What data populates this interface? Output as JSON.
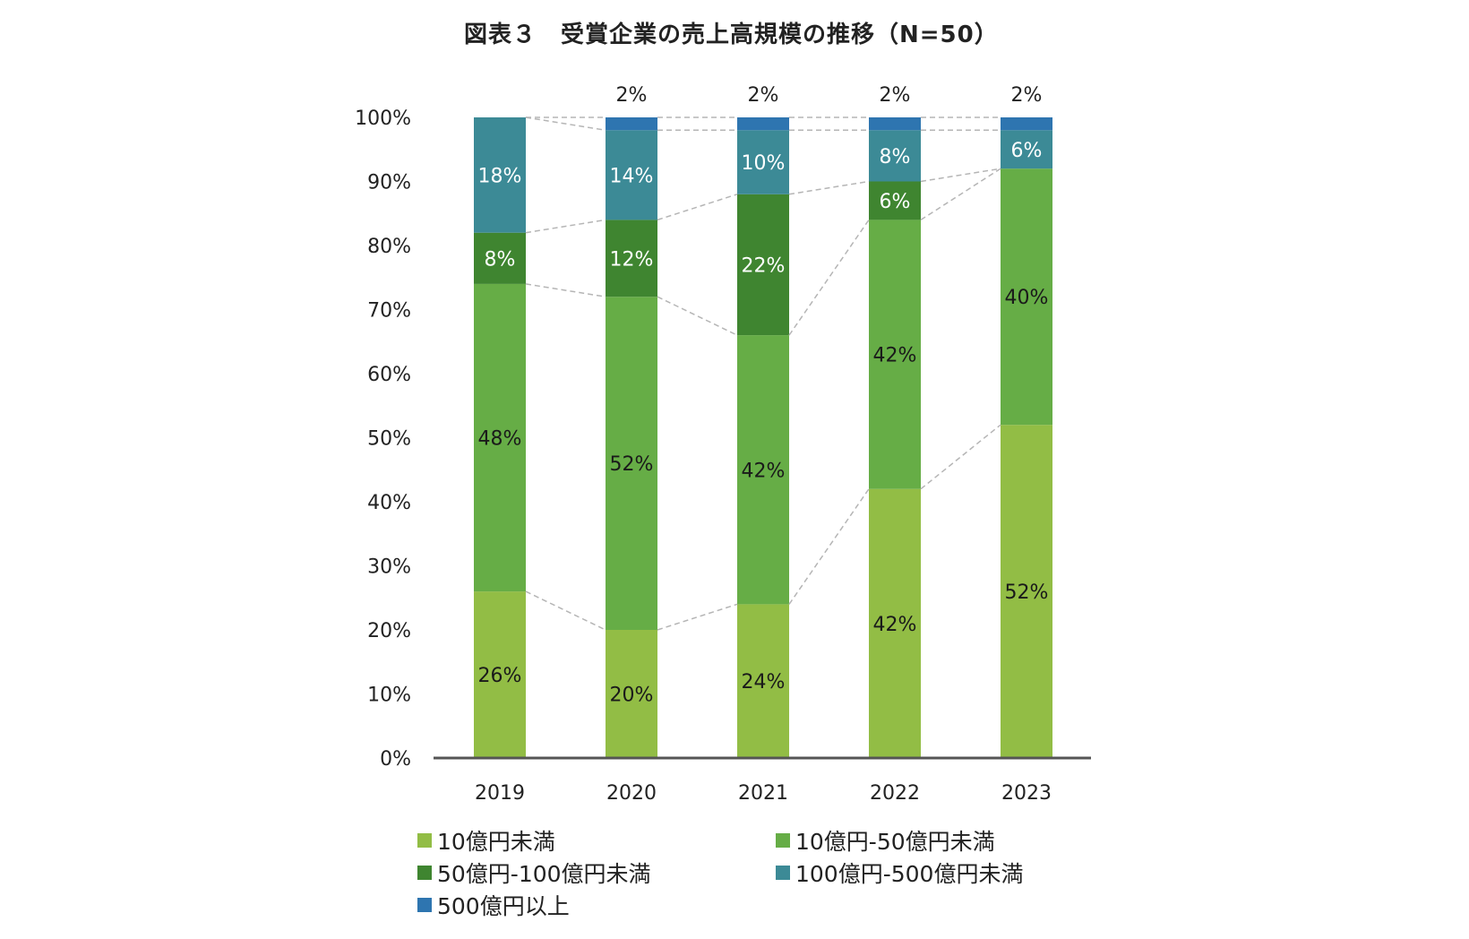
{
  "title": "図表３　受賞企業の売上高規模の推移（N=50）",
  "chart_data": {
    "type": "bar",
    "stacked": true,
    "title": "図表３　受賞企業の売上高規模の推移（N=50）",
    "categories": [
      "2019",
      "2020",
      "2021",
      "2022",
      "2023"
    ],
    "ylim": [
      0,
      100
    ],
    "y_ticks": [
      "0%",
      "10%",
      "20%",
      "30%",
      "40%",
      "50%",
      "60%",
      "70%",
      "80%",
      "90%",
      "100%"
    ],
    "grid": false,
    "connector_lines": "dashed",
    "legend_position": "bottom",
    "series": [
      {
        "name": "10億円未満",
        "color": "#92bd45",
        "values": [
          26,
          20,
          24,
          42,
          52
        ],
        "labels": [
          "26%",
          "20%",
          "24%",
          "42%",
          "52%"
        ],
        "label_color": "#1a1a1a"
      },
      {
        "name": "10億円-50億円未満",
        "color": "#66ad46",
        "values": [
          48,
          52,
          42,
          42,
          40
        ],
        "labels": [
          "48%",
          "52%",
          "42%",
          "42%",
          "40%"
        ],
        "label_color": "#1a1a1a"
      },
      {
        "name": "50億円-100億円未満",
        "color": "#3f8530",
        "values": [
          8,
          12,
          22,
          6,
          0
        ],
        "labels": [
          "8%",
          "12%",
          "22%",
          "6%",
          ""
        ],
        "label_color": "#ffffff"
      },
      {
        "name": "100億円-500億円未満",
        "color": "#3c8a96",
        "values": [
          18,
          14,
          10,
          8,
          6
        ],
        "labels": [
          "18%",
          "14%",
          "10%",
          "8%",
          "6%"
        ],
        "label_color": "#ffffff"
      },
      {
        "name": "500億円以上",
        "color": "#2e75b0",
        "values": [
          0,
          2,
          2,
          2,
          2
        ],
        "labels": [
          "",
          "2%",
          "2%",
          "2%",
          "2%"
        ],
        "label_color": "#1a1a1a"
      }
    ]
  },
  "legend": {
    "items": [
      {
        "label": "10億円未満",
        "color": "#92bd45"
      },
      {
        "label": "10億円-50億円未満",
        "color": "#66ad46"
      },
      {
        "label": "50億円-100億円未満",
        "color": "#3f8530"
      },
      {
        "label": "100億円-500億円未満",
        "color": "#3c8a96"
      },
      {
        "label": "500億円以上",
        "color": "#2e75b0"
      }
    ]
  }
}
